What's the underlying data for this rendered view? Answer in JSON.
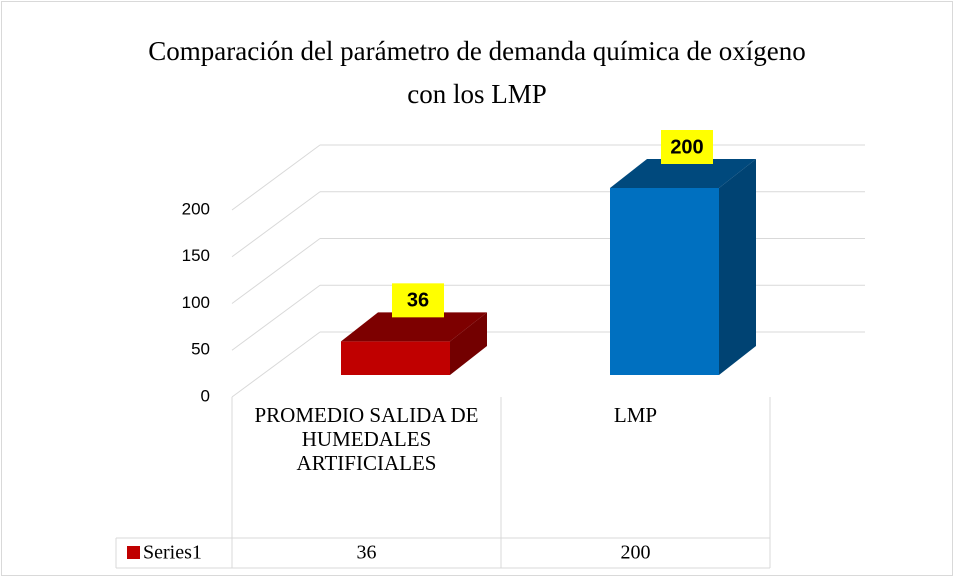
{
  "chart_data": {
    "type": "bar3d",
    "title": "Comparación del parámetro de demanda química de oxígeno con los LMP",
    "categories": [
      "PROMEDIO SALIDA DE HUMEDALES ARTIFICIALES",
      "LMP"
    ],
    "series": [
      {
        "name": "Series1",
        "color": "#c00000",
        "colors": [
          "#c00000",
          "#0070c0"
        ],
        "values": [
          36,
          200
        ]
      }
    ],
    "ylim": [
      0,
      200
    ],
    "yticks": [
      0,
      50,
      100,
      150,
      200
    ],
    "grid": true,
    "value_label_background": "#ffff00",
    "data_table": true
  }
}
